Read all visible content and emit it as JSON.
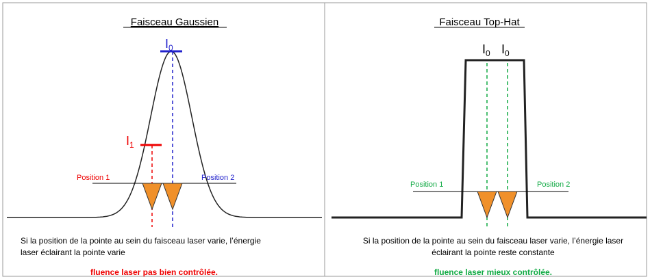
{
  "left": {
    "title": "Faisceau Gaussien",
    "i0": {
      "base": "I",
      "sub": "0"
    },
    "i1": {
      "base": "I",
      "sub": "1"
    },
    "position1": "Position 1",
    "position2": "Position 2",
    "caption": [
      "Si la position de la pointe au sein du faisceau laser varie, l’énergie",
      "laser éclairant la pointe varie"
    ],
    "conclusion": "fluence laser pas bien contrôlée."
  },
  "right": {
    "title": "Faisceau Top-Hat",
    "i0": {
      "base": "I",
      "sub": "0"
    },
    "position1": "Position 1",
    "position2": "Position 2",
    "caption": [
      "Si la position de la pointe au sein du faisceau laser varie, l’énergie laser",
      "éclairant la pointe reste constante"
    ],
    "conclusion": "fluence laser mieux contrôlée."
  }
}
